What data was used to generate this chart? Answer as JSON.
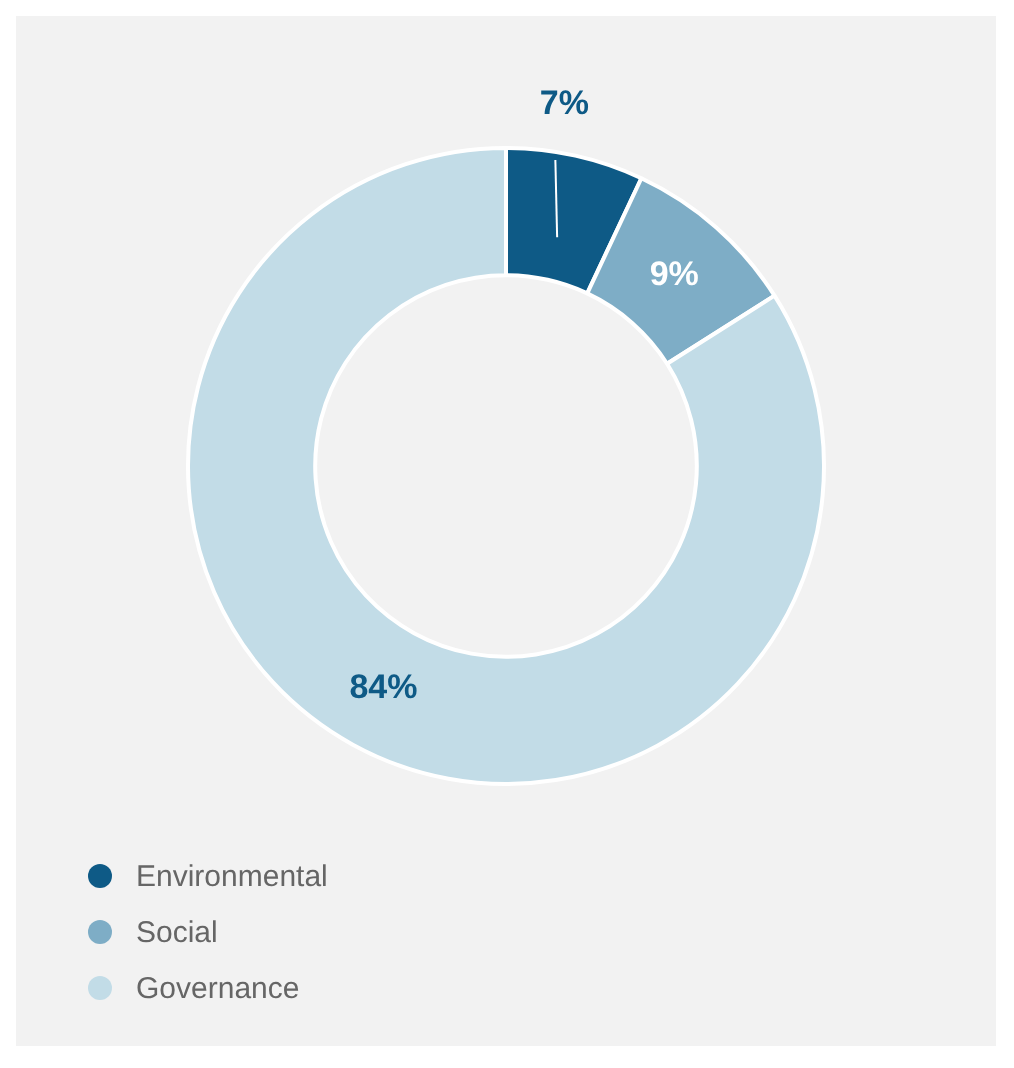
{
  "chart_data": {
    "type": "donut",
    "categories": [
      "Environmental",
      "Social",
      "Governance"
    ],
    "values": [
      7,
      9,
      84
    ],
    "colors": [
      "#0e5a86",
      "#7eadc6",
      "#c2dce7"
    ],
    "value_labels": [
      "7%",
      "9%",
      "84%"
    ],
    "legend": "bottom left"
  }
}
